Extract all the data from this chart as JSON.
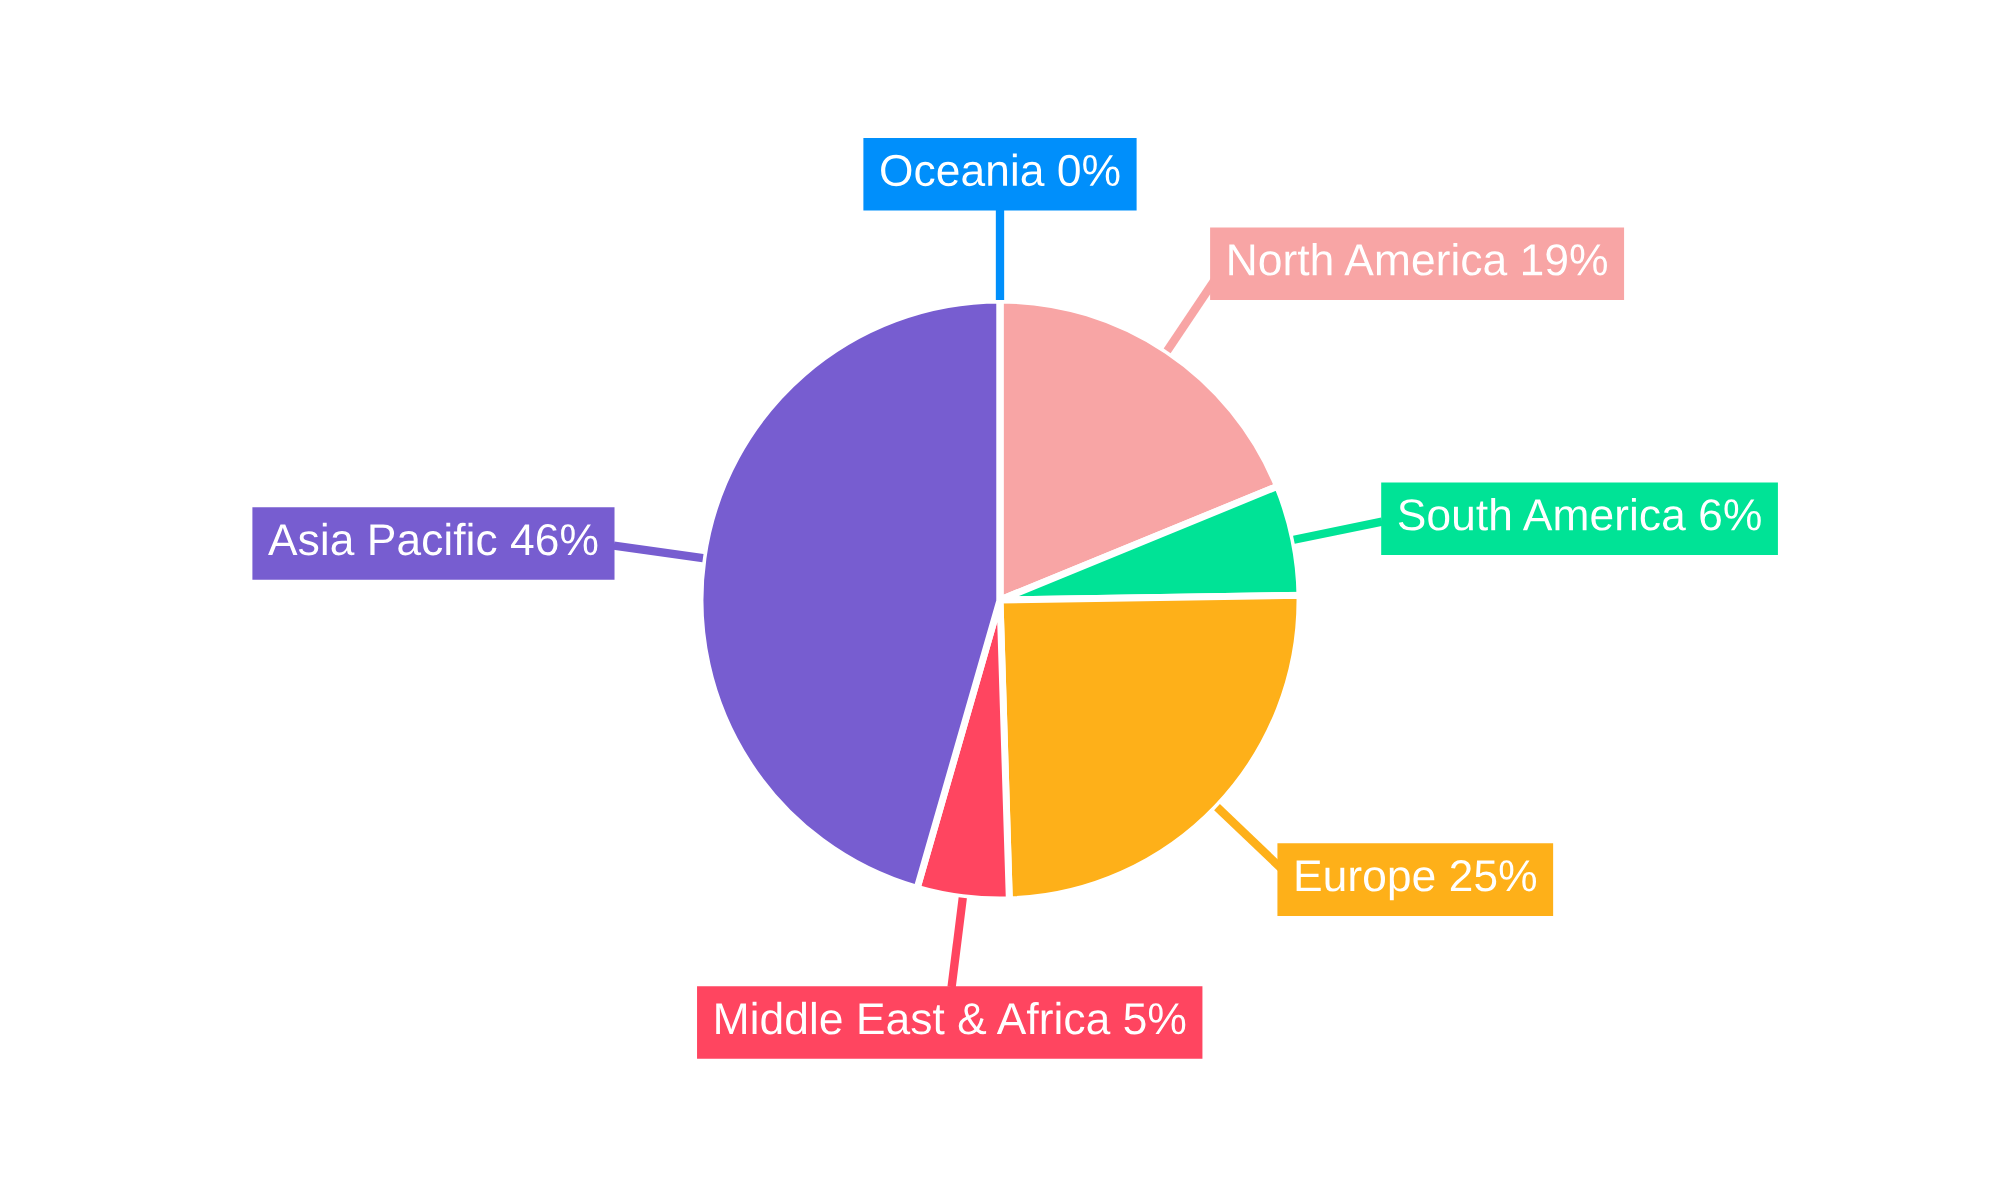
{
  "chart_data": {
    "type": "pie",
    "categories": [
      "North America",
      "South America",
      "Europe",
      "Middle East & Africa",
      "Asia Pacific",
      "Oceania"
    ],
    "values": [
      19,
      6,
      25,
      5,
      46,
      0
    ],
    "value_labels": [
      "19%",
      "6%",
      "25%",
      "5%",
      "46%",
      "0%"
    ],
    "colors": [
      "#f8a5a5",
      "#00e396",
      "#feb019",
      "#ff4560",
      "#775dd0",
      "#008ffb"
    ],
    "legend": false
  }
}
